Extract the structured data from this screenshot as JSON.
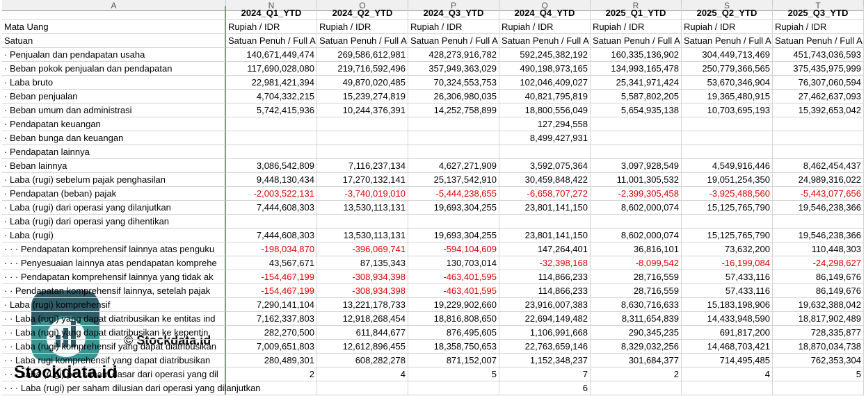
{
  "column_letters": [
    "A",
    "N",
    "O",
    "P",
    "Q",
    "R",
    "S",
    "T"
  ],
  "table": {
    "columns": [
      "2024_Q1_YTD",
      "2024_Q2_YTD",
      "2024_Q3_YTD",
      "2024_Q4_YTD",
      "2025_Q1_YTD",
      "2025_Q2_YTD",
      "2025_Q3_YTD"
    ],
    "rows": [
      {
        "label": "Mata Uang",
        "cells": [
          "Rupiah / IDR",
          "Rupiah / IDR",
          "Rupiah / IDR",
          "Rupiah / IDR",
          "Rupiah / IDR",
          "Rupiah / IDR",
          "Rupiah / IDR"
        ]
      },
      {
        "label": "Satuan",
        "cells": [
          "Satuan Penuh / Full A",
          "Satuan Penuh / Full A",
          "Satuan Penuh / Full A",
          "Satuan Penuh / Full A",
          "Satuan Penuh / Full A",
          "Satuan Penuh / Full A",
          "Satuan Penuh / Full A"
        ]
      },
      {
        "label": "· Penjualan dan pendapatan usaha",
        "cells": [
          "140,671,449,474",
          "269,586,612,981",
          "428,273,916,782",
          "592,245,382,192",
          "160,335,136,902",
          "304,449,713,469",
          "451,743,036,593"
        ]
      },
      {
        "label": "· Beban pokok penjualan dan pendapatan",
        "cells": [
          "117,690,028,080",
          "219,716,592,496",
          "357,949,363,029",
          "490,198,973,165",
          "134,993,165,478",
          "250,779,366,565",
          "375,435,975,999"
        ]
      },
      {
        "label": "· Laba bruto",
        "cells": [
          "22,981,421,394",
          "49,870,020,485",
          "70,324,553,753",
          "102,046,409,027",
          "25,341,971,424",
          "53,670,346,904",
          "76,307,060,594"
        ]
      },
      {
        "label": "· Beban penjualan",
        "cells": [
          "4,704,332,215",
          "15,239,274,819",
          "26,306,980,035",
          "40,821,795,819",
          "5,587,802,205",
          "19,365,480,915",
          "27,462,637,093"
        ]
      },
      {
        "label": "· Beban umum dan administrasi",
        "cells": [
          "5,742,415,936",
          "10,244,376,391",
          "14,252,758,899",
          "18,800,556,049",
          "5,654,935,138",
          "10,703,695,193",
          "15,392,653,042"
        ]
      },
      {
        "label": "· Pendapatan keuangan",
        "cells": [
          null,
          null,
          null,
          "127,294,558",
          null,
          null,
          null
        ]
      },
      {
        "label": "· Beban bunga dan keuangan",
        "cells": [
          null,
          null,
          null,
          "8,499,427,931",
          null,
          null,
          null
        ]
      },
      {
        "label": "· Pendapatan lainnya",
        "cells": [
          null,
          null,
          null,
          null,
          null,
          null,
          null
        ]
      },
      {
        "label": "· Beban lainnya",
        "cells": [
          "3,086,542,809",
          "7,116,237,134",
          "4,627,271,909",
          "3,592,075,364",
          "3,097,928,549",
          "4,549,916,446",
          "8,462,454,437"
        ]
      },
      {
        "label": "· Laba (rugi) sebelum pajak penghasilan",
        "cells": [
          "9,448,130,434",
          "17,270,132,141",
          "25,137,542,910",
          "30,459,848,422",
          "11,001,305,532",
          "19,051,254,350",
          "24,989,316,022"
        ]
      },
      {
        "label": "· Pendapatan (beban) pajak",
        "cells": [
          "-2,003,522,131",
          "-3,740,019,010",
          "-5,444,238,655",
          "-6,658,707,272",
          "-2,399,305,458",
          "-3,925,488,560",
          "-5,443,077,656"
        ]
      },
      {
        "label": "· Laba (rugi) dari operasi yang dilanjutkan",
        "cells": [
          "7,444,608,303",
          "13,530,113,131",
          "19,693,304,255",
          "23,801,141,150",
          "8,602,000,074",
          "15,125,765,790",
          "19,546,238,366"
        ]
      },
      {
        "label": "· Laba (rugi) dari operasi yang dihentikan",
        "cells": [
          null,
          null,
          null,
          null,
          null,
          null,
          null
        ]
      },
      {
        "label": "· Laba (rugi)",
        "cells": [
          "7,444,608,303",
          "13,530,113,131",
          "19,693,304,255",
          "23,801,141,150",
          "8,602,000,074",
          "15,125,765,790",
          "19,546,238,366"
        ]
      },
      {
        "label": "· · · Pendapatan komprehensif lainnya atas penguku",
        "cells": [
          "-198,034,870",
          "-396,069,741",
          "-594,104,609",
          "147,264,401",
          "36,816,101",
          "73,632,200",
          "110,448,303"
        ]
      },
      {
        "label": "· · · Penyesuaian lainnya atas pendapatan komprehe",
        "cells": [
          "43,567,671",
          "87,135,343",
          "130,703,014",
          "-32,398,168",
          "-8,099,542",
          "-16,199,084",
          "-24,298,627"
        ]
      },
      {
        "label": "· · · Pendapatan komprehensif lainnya yang tidak ak",
        "cells": [
          "-154,467,199",
          "-308,934,398",
          "-463,401,595",
          "114,866,233",
          "28,716,559",
          "57,433,116",
          "86,149,676"
        ]
      },
      {
        "label": "· · Pendapatan komprehensif lainnya, setelah pajak",
        "cells": [
          "-154,467,199",
          "-308,934,398",
          "-463,401,595",
          "114,866,233",
          "28,716,559",
          "57,433,116",
          "86,149,676"
        ]
      },
      {
        "label": "· Laba (rugi) komprehensif",
        "cells": [
          "7,290,141,104",
          "13,221,178,733",
          "19,229,902,660",
          "23,916,007,383",
          "8,630,716,633",
          "15,183,198,906",
          "19,632,388,042"
        ]
      },
      {
        "label": "· · Laba (rugi) yang dapat diatribusikan ke entitas ind",
        "cells": [
          "7,162,337,803",
          "12,918,268,454",
          "18,816,808,650",
          "22,694,149,482",
          "8,311,654,839",
          "14,433,948,590",
          "18,817,902,489"
        ]
      },
      {
        "label": "· · Laba (rugi) yang dapat diatribusikan ke kepentin",
        "cells": [
          "282,270,500",
          "611,844,677",
          "876,495,605",
          "1,106,991,668",
          "290,345,235",
          "691,817,200",
          "728,335,877"
        ]
      },
      {
        "label": "· · Laba (rugi) komprehensif yang dapat diatribusikan",
        "cells": [
          "7,009,651,803",
          "12,612,896,455",
          "18,358,750,653",
          "22,763,659,146",
          "8,329,032,256",
          "14,468,703,421",
          "18,870,034,738"
        ]
      },
      {
        "label": "· · Laba rugi komprehensif yang dapat diatribusikan",
        "cells": [
          "280,489,301",
          "608,282,278",
          "871,152,007",
          "1,152,348,237",
          "301,684,377",
          "714,495,485",
          "762,353,304"
        ]
      },
      {
        "label": "· · · Laba (rugi) per saham dasar dari operasi yang dil",
        "cells": [
          "2",
          "4",
          "5",
          "7",
          "2",
          "4",
          "5"
        ]
      },
      {
        "label": "· · · Laba (rugi) per saham dilusian dari operasi yang dilanjutkan",
        "cells": [
          null,
          null,
          null,
          "6",
          null,
          null,
          null
        ]
      }
    ]
  },
  "watermark": {
    "small": "© Stockdata.id",
    "large": "Stockdata.id"
  }
}
